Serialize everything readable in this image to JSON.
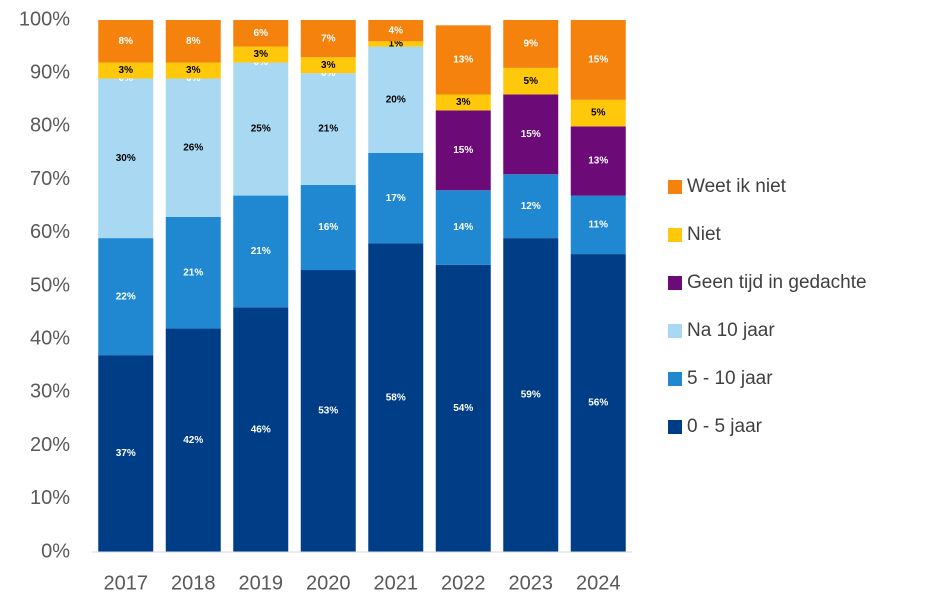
{
  "chart_data": {
    "type": "stacked_bar",
    "categories": [
      "2017",
      "2018",
      "2019",
      "2020",
      "2021",
      "2022",
      "2023",
      "2024"
    ],
    "series": [
      {
        "name": "0 - 5 jaar",
        "color": "#003d87",
        "values": [
          37,
          42,
          46,
          53,
          58,
          54,
          59,
          56
        ],
        "value_labels": [
          "37%",
          "42%",
          "46%",
          "53%",
          "58%",
          "54%",
          "59%",
          "56%"
        ]
      },
      {
        "name": "5 - 10 jaar",
        "color": "#1f88d0",
        "values": [
          22,
          21,
          21,
          16,
          17,
          14,
          12,
          11
        ],
        "value_labels": [
          "22%",
          "21%",
          "21%",
          "16%",
          "17%",
          "14%",
          "12%",
          "11%"
        ]
      },
      {
        "name": "Na 10 jaar",
        "color": "#a9d9f2",
        "values": [
          30,
          26,
          25,
          21,
          20,
          null,
          null,
          null
        ],
        "value_labels": [
          "30%",
          "26%",
          "25%",
          "21%",
          "20%",
          null,
          null,
          null
        ]
      },
      {
        "name": "Geen tijd in gedachte",
        "color": "#6c0a78",
        "values": [
          0,
          0,
          0,
          0,
          null,
          15,
          15,
          13
        ],
        "value_labels": [
          "0%",
          "0%",
          "0%",
          "0%",
          null,
          "15%",
          "15%",
          "13%"
        ]
      },
      {
        "name": "Niet",
        "color": "#ffc80a",
        "values": [
          3,
          3,
          3,
          3,
          1,
          3,
          5,
          5
        ],
        "value_labels": [
          "3%",
          "3%",
          "3%",
          "3%",
          "1%",
          "3%",
          "5%",
          "5%"
        ]
      },
      {
        "name": "Weet ik niet",
        "color": "#f5820d",
        "values": [
          8,
          8,
          6,
          7,
          4,
          13,
          9,
          15
        ],
        "value_labels": [
          "8%",
          "8%",
          "6%",
          "7%",
          "4%",
          "13%",
          "9%",
          "15%"
        ]
      }
    ],
    "ylim": [
      0,
      100
    ],
    "yticks": [
      {
        "value": 0,
        "label": "0%"
      },
      {
        "value": 10,
        "label": "10%"
      },
      {
        "value": 20,
        "label": "20%"
      },
      {
        "value": 30,
        "label": "30%"
      },
      {
        "value": 40,
        "label": "40%"
      },
      {
        "value": 50,
        "label": "50%"
      },
      {
        "value": 60,
        "label": "60%"
      },
      {
        "value": 70,
        "label": "70%"
      },
      {
        "value": 80,
        "label": "80%"
      },
      {
        "value": 90,
        "label": "90%"
      },
      {
        "value": 100,
        "label": "100%"
      }
    ],
    "grid": false,
    "legend": "right"
  }
}
